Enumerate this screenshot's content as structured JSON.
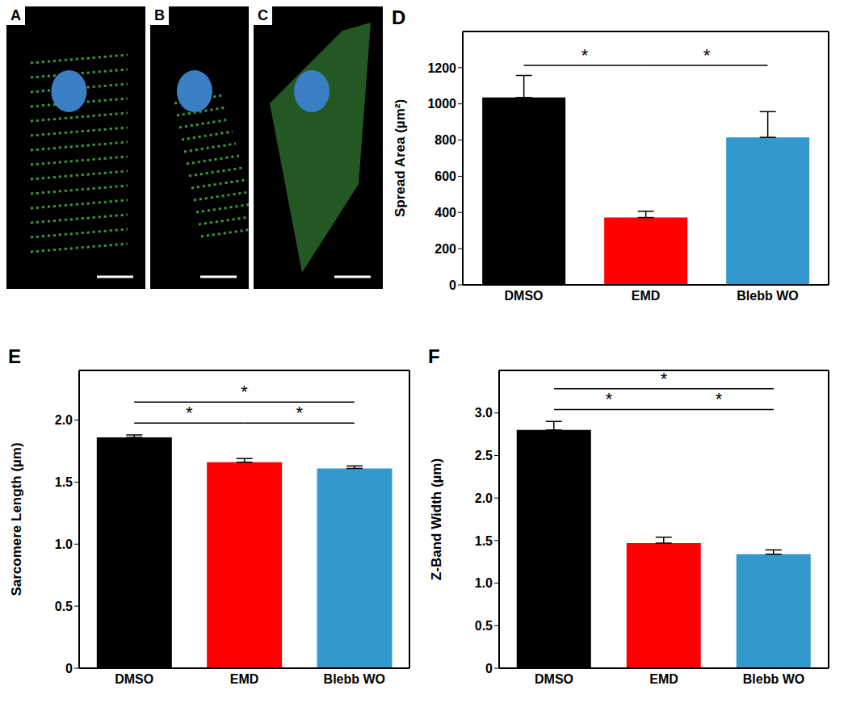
{
  "images": [
    {
      "label": "A"
    },
    {
      "label": "B"
    },
    {
      "label": "C"
    }
  ],
  "chart_data": [
    {
      "label": "D",
      "type": "bar",
      "categories": [
        "DMSO",
        "EMD",
        "Blebb WO"
      ],
      "values": [
        1035,
        372,
        815
      ],
      "errors": [
        122,
        35,
        142
      ],
      "colors": [
        "#000000",
        "#ff0000",
        "#3399cc"
      ],
      "ylabel": "Spread Area (µm²)",
      "ylim": [
        0,
        1400
      ],
      "yticks": [
        0,
        200,
        400,
        600,
        800,
        1000,
        1200
      ],
      "grid": false,
      "annotations": [
        {
          "from": "DMSO",
          "to": "EMD",
          "text": "*"
        },
        {
          "from": "EMD",
          "to": "Blebb WO",
          "text": "*"
        }
      ]
    },
    {
      "label": "E",
      "type": "bar",
      "categories": [
        "DMSO",
        "EMD",
        "Blebb WO"
      ],
      "values": [
        1.86,
        1.66,
        1.61
      ],
      "errors": [
        0.02,
        0.03,
        0.02
      ],
      "colors": [
        "#000000",
        "#ff0000",
        "#3399cc"
      ],
      "ylabel": "Sarcomere Length (µm)",
      "ylim": [
        0,
        2.4
      ],
      "yticks": [
        0,
        0.5,
        {
          "value": 1,
          "label": "1.0"
        },
        1.5,
        {
          "value": 2,
          "label": "2.0"
        }
      ],
      "grid": false,
      "annotations": [
        {
          "from": "DMSO",
          "to": "EMD",
          "text": "*"
        },
        {
          "from": "EMD",
          "to": "Blebb WO",
          "text": "*"
        },
        {
          "from": "DMSO",
          "to": "Blebb WO",
          "text": "*"
        }
      ]
    },
    {
      "label": "F",
      "type": "bar",
      "categories": [
        "DMSO",
        "EMD",
        "Blebb WO"
      ],
      "values": [
        2.8,
        1.47,
        1.34
      ],
      "errors": [
        0.1,
        0.07,
        0.05
      ],
      "colors": [
        "#000000",
        "#ff0000",
        "#3399cc"
      ],
      "ylabel": "Z-Band Width (µm)",
      "ylim": [
        0,
        3.5
      ],
      "yticks": [
        0,
        0.5,
        {
          "value": 1,
          "label": "1.0"
        },
        1.5,
        {
          "value": 2,
          "label": "2.0"
        },
        2.5,
        {
          "value": 3,
          "label": "3.0"
        }
      ],
      "grid": false,
      "annotations": [
        {
          "from": "DMSO",
          "to": "EMD",
          "text": "*"
        },
        {
          "from": "EMD",
          "to": "Blebb WO",
          "text": "*"
        },
        {
          "from": "DMSO",
          "to": "Blebb WO",
          "text": "*"
        }
      ]
    }
  ]
}
